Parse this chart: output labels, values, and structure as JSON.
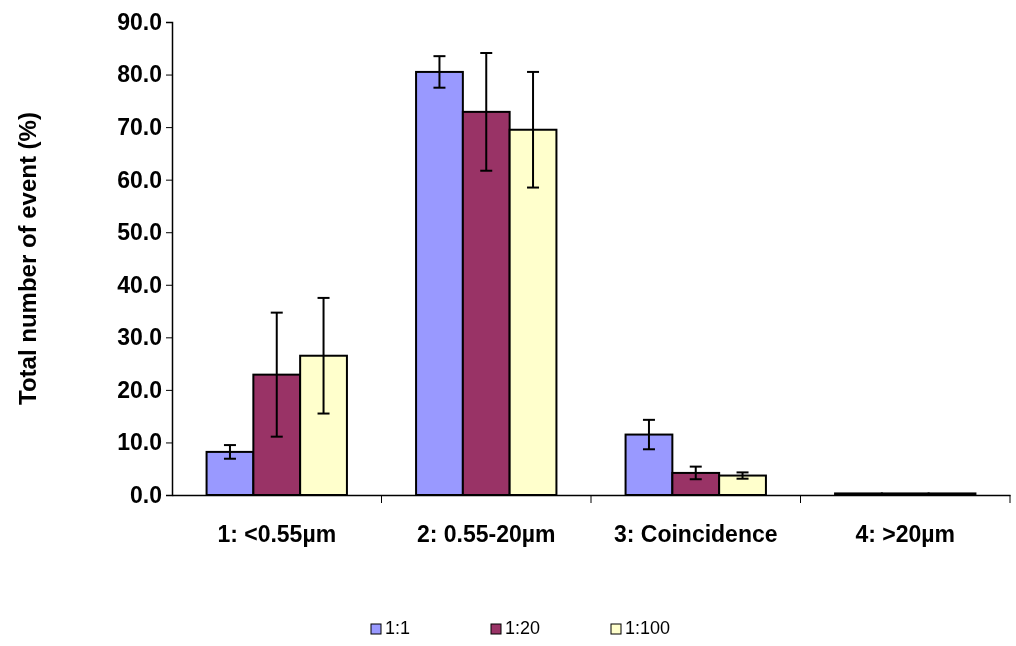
{
  "chart_data": {
    "type": "bar",
    "ylabel": "Total number of event (%)",
    "categories": [
      "1: <0.55µm",
      "2: 0.55-20µm",
      "3: Coincidence",
      "4: >20µm"
    ],
    "series": [
      {
        "name": "1:1",
        "color": "#9999ff",
        "values": [
          8.2,
          80.5,
          11.5,
          0.3
        ],
        "errors": [
          1.3,
          3,
          2.8,
          null
        ]
      },
      {
        "name": "1:20",
        "color": "#993366",
        "values": [
          22.9,
          72.9,
          4.2,
          0.3
        ],
        "errors": [
          11.8,
          11.2,
          1.2,
          null
        ]
      },
      {
        "name": "1:100",
        "color": "#ffffcc",
        "values": [
          26.5,
          69.5,
          3.7,
          0.3
        ],
        "errors": [
          11,
          11,
          0.6,
          null
        ]
      }
    ],
    "ylim": [
      0,
      90
    ],
    "yticks": [
      {
        "value": 0,
        "label": "0.0"
      },
      {
        "value": 10,
        "label": "10.0"
      },
      {
        "value": 20,
        "label": "20.0"
      },
      {
        "value": 30,
        "label": "30.0"
      },
      {
        "value": 40,
        "label": "40.0"
      },
      {
        "value": 50,
        "label": "50.0"
      },
      {
        "value": 60,
        "label": "60.0"
      },
      {
        "value": 70,
        "label": "70.0"
      },
      {
        "value": 80,
        "label": "80.0"
      },
      {
        "value": 90,
        "label": "90.0"
      }
    ],
    "grid": false,
    "legend": "bottom"
  }
}
